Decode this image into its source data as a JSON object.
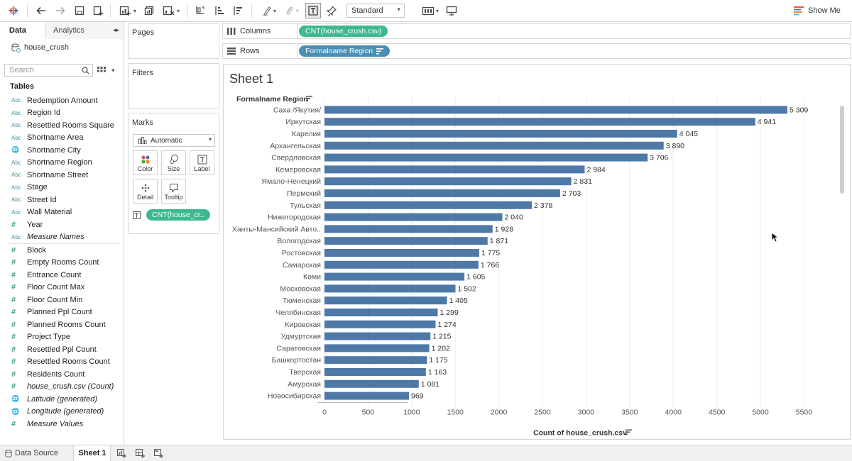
{
  "toolbar": {
    "view_mode": "Standard",
    "show_me_label": "Show Me"
  },
  "data_panel": {
    "tab_data": "Data",
    "tab_analytics": "Analytics",
    "datasource_name": "house_crush",
    "search_placeholder": "Search",
    "tables_header": "Tables",
    "dimensions": [
      {
        "label": "Redemption Amount",
        "type": "abc"
      },
      {
        "label": "Region Id",
        "type": "abc"
      },
      {
        "label": "Resettled Rooms Square",
        "type": "abc"
      },
      {
        "label": "Shortname Area",
        "type": "abc"
      },
      {
        "label": "Shortname City",
        "type": "globe"
      },
      {
        "label": "Shortname Region",
        "type": "abc"
      },
      {
        "label": "Shortname Street",
        "type": "abc"
      },
      {
        "label": "Stage",
        "type": "abc"
      },
      {
        "label": "Street Id",
        "type": "abc"
      },
      {
        "label": "Wall Material",
        "type": "abc"
      },
      {
        "label": "Year",
        "type": "hash"
      },
      {
        "label": "Measure Names",
        "type": "abc",
        "italic": true
      }
    ],
    "measures": [
      {
        "label": "Block",
        "type": "hash"
      },
      {
        "label": "Empty Rooms Count",
        "type": "hash"
      },
      {
        "label": "Entrance Count",
        "type": "hash"
      },
      {
        "label": "Floor Count Max",
        "type": "hash"
      },
      {
        "label": "Floor Count Min",
        "type": "hash"
      },
      {
        "label": "Planned Ppl Count",
        "type": "hash"
      },
      {
        "label": "Planned Rooms Count",
        "type": "hash"
      },
      {
        "label": "Project Type",
        "type": "hash"
      },
      {
        "label": "Resettled Ppl Count",
        "type": "hash"
      },
      {
        "label": "Resettled Rooms Count",
        "type": "hash"
      },
      {
        "label": "Residents Count",
        "type": "hash"
      },
      {
        "label": "house_crush.csv (Count)",
        "type": "hash",
        "italic": true
      },
      {
        "label": "Latitude (generated)",
        "type": "globe",
        "italic": true
      },
      {
        "label": "Longitude (generated)",
        "type": "globe",
        "italic": true
      },
      {
        "label": "Measure Values",
        "type": "hash",
        "italic": true
      }
    ]
  },
  "cards": {
    "pages": "Pages",
    "filters": "Filters",
    "marks": "Marks",
    "mark_type": "Automatic",
    "buttons": {
      "color": "Color",
      "size": "Size",
      "label": "Label",
      "detail": "Detail",
      "tooltip": "Tooltip"
    },
    "marks_pill": "CNT(house_cr.."
  },
  "shelves": {
    "columns_label": "Columns",
    "columns_pill": "CNT(house_crush.csv)",
    "rows_label": "Rows",
    "rows_pill": "Formalname Region"
  },
  "sheet": {
    "title": "Sheet 1"
  },
  "bottom": {
    "data_source_tab": "Data Source",
    "sheet_tab": "Sheet 1"
  },
  "colors": {
    "bar": "#4e79a7",
    "pill_green": "#3db991",
    "pill_blue": "#4a90b5"
  },
  "chart_data": {
    "type": "bar",
    "orientation": "horizontal",
    "row_header": "Formalname Region",
    "xlabel": "Count of house_crush.csv",
    "xlim": [
      0,
      5700
    ],
    "x_ticks": [
      0,
      500,
      1000,
      1500,
      2000,
      2500,
      3000,
      3500,
      4000,
      4500,
      5000,
      5500
    ],
    "x_tick_labels": [
      "0",
      "500",
      "1000",
      "1500",
      "2000",
      "2500",
      "3000",
      "3500",
      "4000",
      "4500",
      "5000",
      "5500"
    ],
    "grid": true,
    "categories": [
      "Саха /Якутия/",
      "Иркутская",
      "Карелия",
      "Архангельская",
      "Свердловская",
      "Кемеровская",
      "Ямало-Ненецкий",
      "Пермский",
      "Тульская",
      "Нижегородская",
      "Ханты-Мансийский Авто..",
      "Вологодская",
      "Ростовская",
      "Самарская",
      "Коми",
      "Московская",
      "Тюменская",
      "Челябинская",
      "Кировская",
      "Удмуртская",
      "Саратовская",
      "Башкортостан",
      "Тверская",
      "Амурская",
      "Новосибирская"
    ],
    "values": [
      5309,
      4941,
      4045,
      3890,
      3706,
      2984,
      2831,
      2703,
      2378,
      2040,
      1928,
      1871,
      1775,
      1766,
      1605,
      1502,
      1405,
      1299,
      1274,
      1215,
      1202,
      1175,
      1163,
      1081,
      969
    ],
    "value_labels": [
      "5 309",
      "4 941",
      "4 045",
      "3 890",
      "3 706",
      "2 984",
      "2 831",
      "2 703",
      "2 378",
      "2 040",
      "1 928",
      "1 871",
      "1 775",
      "1 766",
      "1 605",
      "1 502",
      "1 405",
      "1 299",
      "1 274",
      "1 215",
      "1 202",
      "1 175",
      "1 163",
      "1 081",
      "969"
    ]
  }
}
